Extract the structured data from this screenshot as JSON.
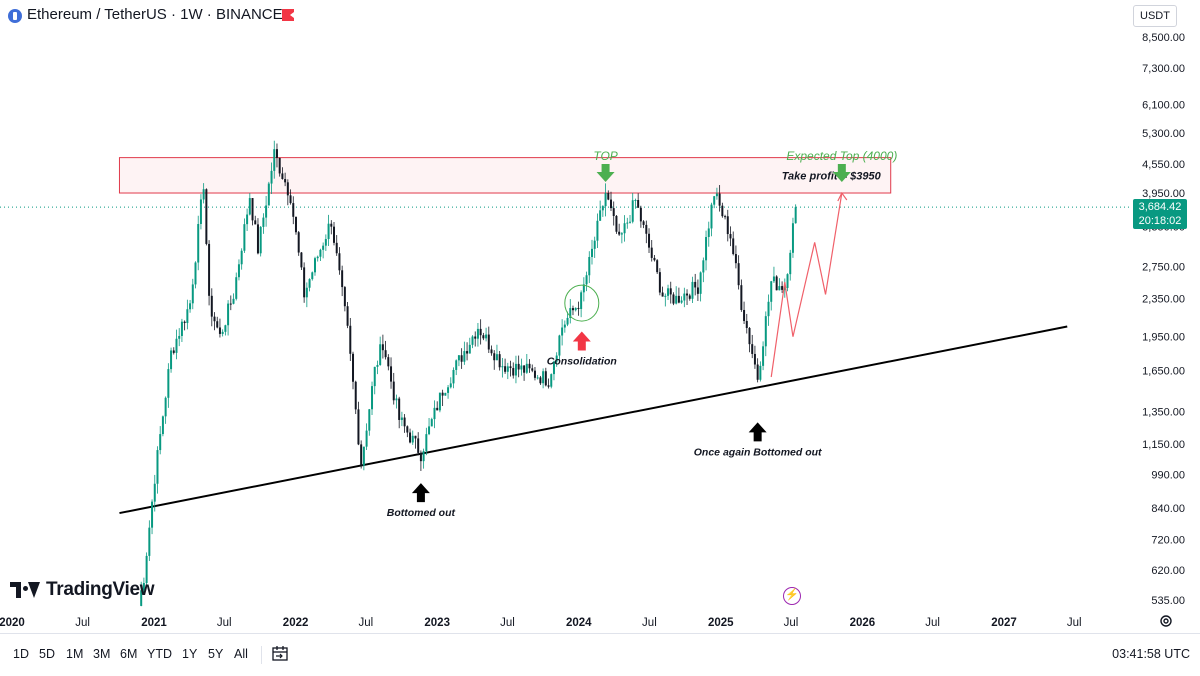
{
  "header": {
    "title": "Ethereum / TetherUS · 1W · BINANCE"
  },
  "currency": "USDT",
  "current_price": {
    "value": "3,684.42",
    "countdown": "20:18:02"
  },
  "logo_text": "TradingView",
  "range_buttons": [
    "1D",
    "5D",
    "1M",
    "3M",
    "6M",
    "YTD",
    "1Y",
    "5Y",
    "All"
  ],
  "clock": "03:41:58 UTC",
  "icons": {
    "symbol": "ethereum-icon",
    "flag": "flag-icon",
    "calendar": "calendar-icon",
    "lightning": "lightning-icon",
    "settings": "settings-icon"
  },
  "colors": {
    "up": "#089981",
    "down": "#131722",
    "zone_border": "#e03a4b",
    "annotation_green": "#4caf50",
    "projection": "#f0606a"
  },
  "chart_data": {
    "type": "candlestick",
    "symbol": "ETHUSDT",
    "interval": "1W",
    "yscale": "log",
    "ylim": [
      500,
      9300
    ],
    "y_ticks": [
      {
        "label": "8,500.00",
        "value": 8500
      },
      {
        "label": "7,300.00",
        "value": 7300
      },
      {
        "label": "6,100.00",
        "value": 6100
      },
      {
        "label": "5,300.00",
        "value": 5300
      },
      {
        "label": "4,550.00",
        "value": 4550
      },
      {
        "label": "3,950.00",
        "value": 3950
      },
      {
        "label": "3,350.00",
        "value": 3350
      },
      {
        "label": "2,750.00",
        "value": 2750
      },
      {
        "label": "2,350.00",
        "value": 2350
      },
      {
        "label": "1,950.00",
        "value": 1950
      },
      {
        "label": "1,650.00",
        "value": 1650
      },
      {
        "label": "1,350.00",
        "value": 1350
      },
      {
        "label": "1,150.00",
        "value": 1150
      },
      {
        "label": "990.00",
        "value": 990
      },
      {
        "label": "840.00",
        "value": 840
      },
      {
        "label": "720.00",
        "value": 720
      },
      {
        "label": "620.00",
        "value": 620
      },
      {
        "label": "535.00",
        "value": 535
      }
    ],
    "x_ticks": [
      {
        "label": "2020",
        "date": "2020-01-01",
        "bold": true
      },
      {
        "label": "Jul",
        "date": "2020-07-01"
      },
      {
        "label": "2021",
        "date": "2021-01-01",
        "bold": true
      },
      {
        "label": "Jul",
        "date": "2021-07-01"
      },
      {
        "label": "2022",
        "date": "2022-01-01",
        "bold": true
      },
      {
        "label": "Jul",
        "date": "2022-07-01"
      },
      {
        "label": "2023",
        "date": "2023-01-01",
        "bold": true
      },
      {
        "label": "Jul",
        "date": "2023-07-01"
      },
      {
        "label": "2024",
        "date": "2024-01-01",
        "bold": true
      },
      {
        "label": "Jul",
        "date": "2024-07-01"
      },
      {
        "label": "2025",
        "date": "2025-01-01",
        "bold": true
      },
      {
        "label": "Jul",
        "date": "2025-07-01"
      },
      {
        "label": "2026",
        "date": "2026-01-01",
        "bold": true
      },
      {
        "label": "Jul",
        "date": "2026-07-01"
      },
      {
        "label": "2027",
        "date": "2027-01-01",
        "bold": true
      },
      {
        "label": "Jul",
        "date": "2027-07-01"
      }
    ],
    "price_path": [
      [
        "2020-11-22",
        520
      ],
      [
        "2020-12-06",
        600
      ],
      [
        "2021-01-03",
        980
      ],
      [
        "2021-02-14",
        1800
      ],
      [
        "2021-04-04",
        2300
      ],
      [
        "2021-05-09",
        4150
      ],
      [
        "2021-05-23",
        2300
      ],
      [
        "2021-06-20",
        1950
      ],
      [
        "2021-07-25",
        2400
      ],
      [
        "2021-09-05",
        3900
      ],
      [
        "2021-09-26",
        3000
      ],
      [
        "2021-11-07",
        4800
      ],
      [
        "2021-12-19",
        3900
      ],
      [
        "2022-01-23",
        2400
      ],
      [
        "2022-02-27",
        2900
      ],
      [
        "2022-04-03",
        3450
      ],
      [
        "2022-05-15",
        2000
      ],
      [
        "2022-06-19",
        1050
      ],
      [
        "2022-07-24",
        1650
      ],
      [
        "2022-08-14",
        1900
      ],
      [
        "2022-09-25",
        1300
      ],
      [
        "2022-11-20",
        1100
      ],
      [
        "2023-01-15",
        1500
      ],
      [
        "2023-04-16",
        2050
      ],
      [
        "2023-06-18",
        1700
      ],
      [
        "2023-08-20",
        1650
      ],
      [
        "2023-10-15",
        1580
      ],
      [
        "2023-11-19",
        2050
      ],
      [
        "2024-01-07",
        2350
      ],
      [
        "2024-03-10",
        3950
      ],
      [
        "2024-04-14",
        3100
      ],
      [
        "2024-05-26",
        3800
      ],
      [
        "2024-08-04",
        2400
      ],
      [
        "2024-09-08",
        2350
      ],
      [
        "2024-11-03",
        2500
      ],
      [
        "2024-12-15",
        3950
      ],
      [
        "2025-01-26",
        3200
      ],
      [
        "2025-02-23",
        2300
      ],
      [
        "2025-04-06",
        1600
      ],
      [
        "2025-05-11",
        2550
      ],
      [
        "2025-06-15",
        2500
      ],
      [
        "2025-07-13",
        3684.42
      ]
    ],
    "resistance_zone": {
      "low": 3950,
      "high": 4700,
      "start": "2020-10-04",
      "end": "2026-03-15",
      "label": "Take profit = $3950"
    },
    "trendline": {
      "start": {
        "date": "2020-10-04",
        "price": 820
      },
      "end": {
        "date": "2027-06-13",
        "price": 2050
      }
    },
    "projection_path": [
      [
        "2025-05-11",
        1600
      ],
      [
        "2025-06-15",
        2550
      ],
      [
        "2025-07-06",
        1950
      ],
      [
        "2025-08-31",
        3100
      ],
      [
        "2025-09-28",
        2400
      ],
      [
        "2025-11-09",
        3950
      ]
    ],
    "annotations": [
      {
        "text": "TOP",
        "date": "2024-03-10",
        "price": 4600,
        "color": "green",
        "arrow": "down",
        "italic": true
      },
      {
        "text": "Expected Top (4000)",
        "date": "2025-11-09",
        "price": 4600,
        "color": "green",
        "arrow": "down",
        "italic": true
      },
      {
        "text": "Consolidation",
        "date": "2024-01-01",
        "price": 2000,
        "color": "red",
        "arrow": "up",
        "italic": true
      },
      {
        "text": "Bottomed out",
        "date": "2022-11-20",
        "price": 950,
        "color": "black",
        "arrow": "up",
        "italic": true
      },
      {
        "text": "Once again Bottomed out",
        "date": "2025-04-06",
        "price": 1280,
        "color": "black",
        "arrow": "up",
        "italic": true
      }
    ],
    "current_price_line": 3684.42,
    "grid": false,
    "legend": "none"
  }
}
